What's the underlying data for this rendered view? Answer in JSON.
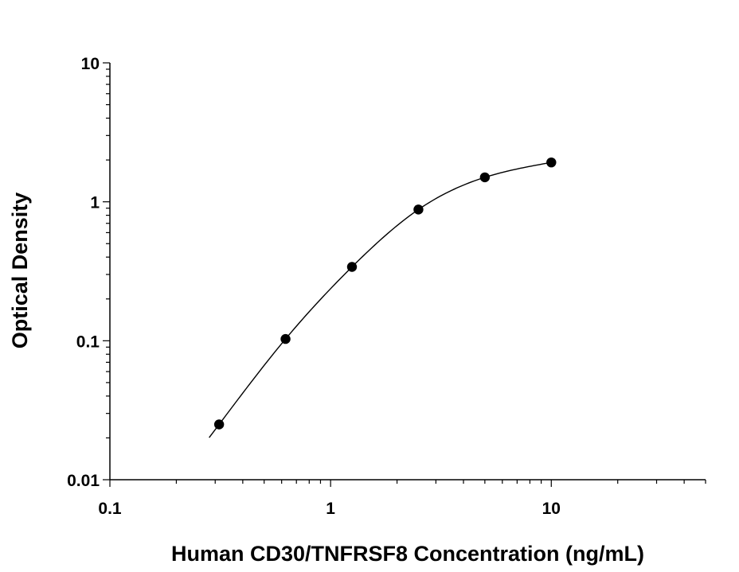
{
  "chart_data": {
    "type": "scatter",
    "title": "",
    "xlabel": "Human CD30/TNFRSF8 Concentration (ng/mL)",
    "ylabel": "Optical Density",
    "x_scale": "log",
    "y_scale": "log",
    "xlim": [
      0.1,
      50
    ],
    "ylim": [
      0.01,
      10
    ],
    "x_ticks": [
      {
        "value": 0.1,
        "label": "0.1"
      },
      {
        "value": 1,
        "label": "1"
      },
      {
        "value": 10,
        "label": "10"
      }
    ],
    "y_ticks": [
      {
        "value": 0.01,
        "label": "0.01"
      },
      {
        "value": 0.1,
        "label": "0.1"
      },
      {
        "value": 1,
        "label": "1"
      },
      {
        "value": 10,
        "label": "10"
      }
    ],
    "grid": false,
    "legend": "none",
    "series": [
      {
        "x": [
          0.3125,
          0.625,
          1.25,
          2.5,
          5,
          10
        ],
        "y": [
          0.025,
          0.103,
          0.34,
          0.88,
          1.5,
          1.92
        ]
      }
    ],
    "fit_curve": true,
    "colors": {
      "marker": "#000000",
      "line": "#000000",
      "axis": "#000000"
    }
  }
}
